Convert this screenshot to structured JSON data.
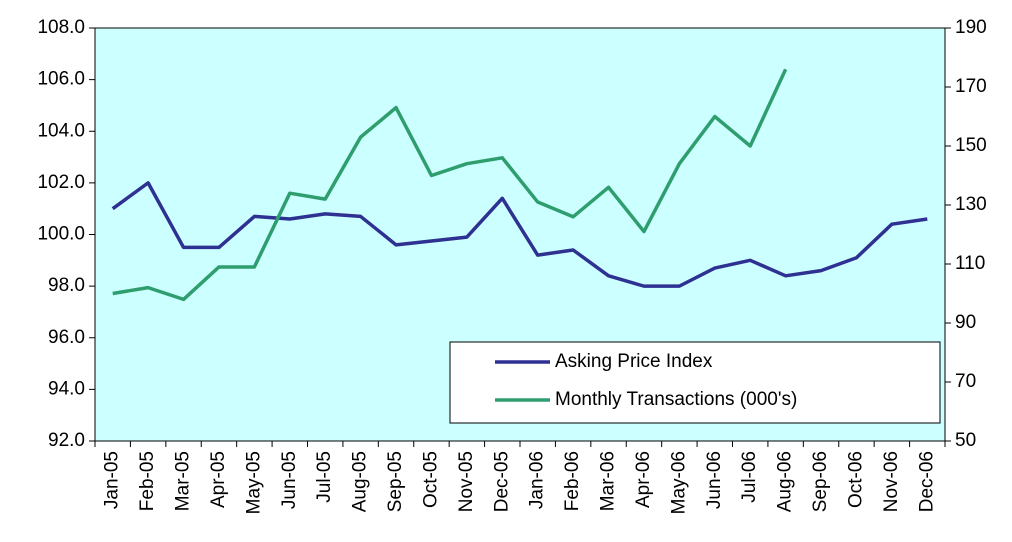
{
  "chart_data": {
    "type": "line",
    "categories": [
      "Jan-05",
      "Feb-05",
      "Mar-05",
      "Apr-05",
      "May-05",
      "Jun-05",
      "Jul-05",
      "Aug-05",
      "Sep-05",
      "Oct-05",
      "Nov-05",
      "Dec-05",
      "Jan-06",
      "Feb-06",
      "Mar-06",
      "Apr-06",
      "May-06",
      "Jun-06",
      "Jul-06",
      "Aug-06",
      "Sep-06",
      "Oct-06",
      "Nov-06",
      "Dec-06"
    ],
    "series": [
      {
        "name": "Asking Price Index",
        "color": "#2e3192",
        "values": [
          101.0,
          102.0,
          99.5,
          99.5,
          100.7,
          100.6,
          100.8,
          100.7,
          99.6,
          99.75,
          99.9,
          101.4,
          99.2,
          99.4,
          98.4,
          98.0,
          98.0,
          98.7,
          99.0,
          98.4,
          98.6,
          99.1,
          100.4,
          100.6
        ]
      },
      {
        "name": "Monthly Transactions (000's)",
        "color": "#2e9e6e",
        "axis": "y2",
        "values": [
          100,
          102,
          98,
          109,
          109,
          134,
          132,
          153,
          163,
          140,
          144,
          146,
          131,
          126,
          136,
          121,
          144,
          160,
          150,
          176,
          null,
          null,
          null,
          null
        ]
      }
    ],
    "ylim": [
      92,
      108
    ],
    "yticks": [
      {
        "value": 92,
        "label": "92.0"
      },
      {
        "value": 94,
        "label": "94.0"
      },
      {
        "value": 96,
        "label": "96.0"
      },
      {
        "value": 98,
        "label": "98.0"
      },
      {
        "value": 100,
        "label": "100.0"
      },
      {
        "value": 102,
        "label": "102.0"
      },
      {
        "value": 104,
        "label": "104.0"
      },
      {
        "value": 106,
        "label": "106.0"
      },
      {
        "value": 108,
        "label": "108.0"
      }
    ],
    "y2lim": [
      50,
      190
    ],
    "y2ticks": [
      50,
      70,
      90,
      110,
      130,
      150,
      170,
      190
    ],
    "plot_background": "#ccffff",
    "legend": "lower right"
  }
}
